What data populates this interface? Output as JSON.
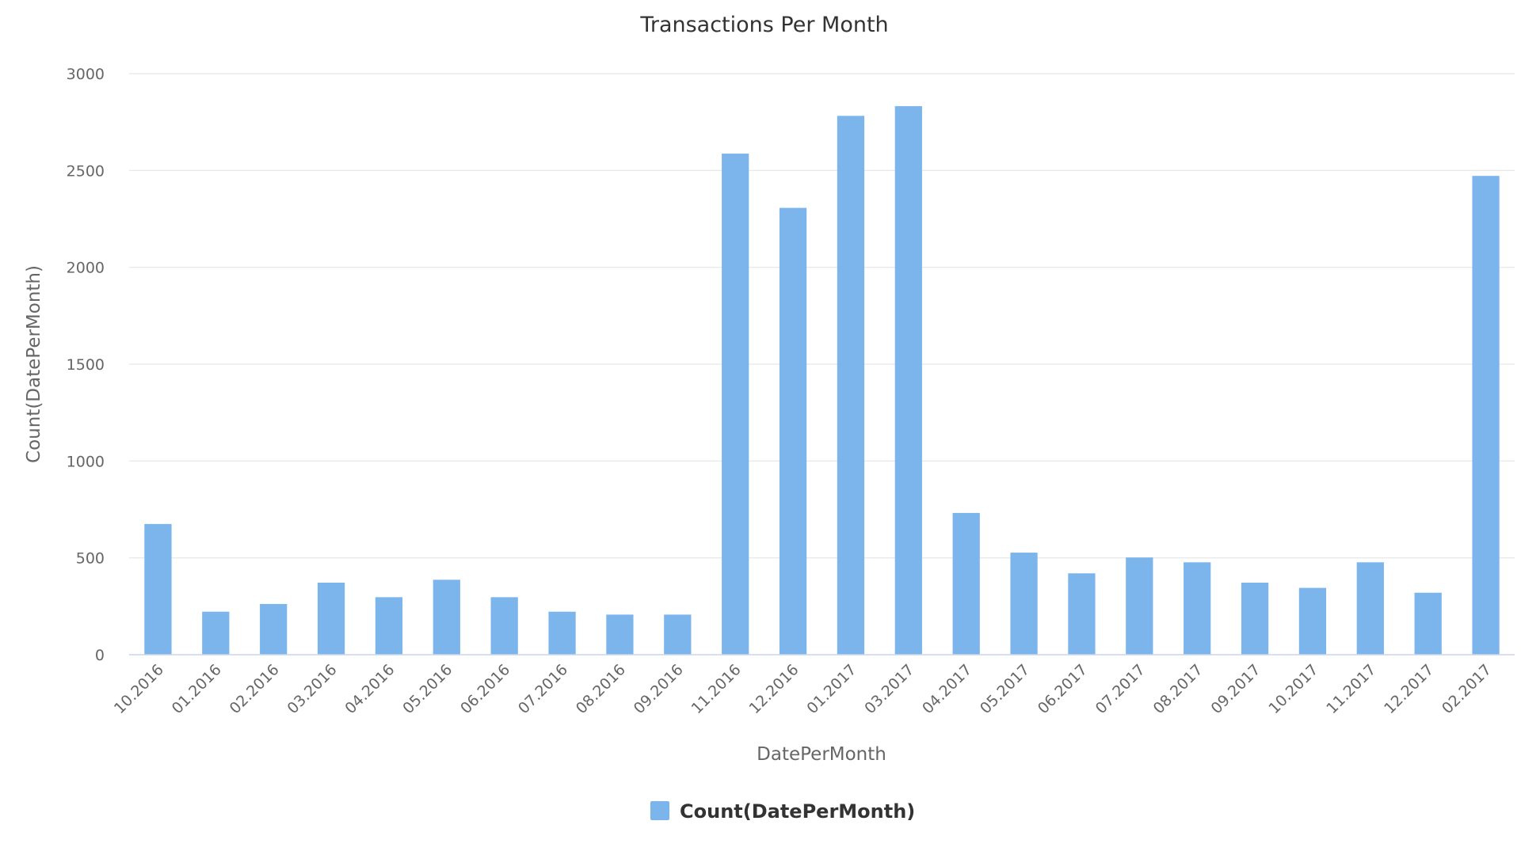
{
  "chart_data": {
    "type": "bar",
    "title": "Transactions Per Month",
    "xlabel": "DatePerMonth",
    "ylabel": "Count(DatePerMonth)",
    "categories": [
      "10.2016",
      "01.2016",
      "02.2016",
      "03.2016",
      "04.2016",
      "05.2016",
      "06.2016",
      "07.2016",
      "08.2016",
      "09.2016",
      "11.2016",
      "12.2016",
      "01.2017",
      "03.2017",
      "04.2017",
      "05.2017",
      "06.2017",
      "07.2017",
      "08.2017",
      "09.2017",
      "10.2017",
      "11.2017",
      "12.2017",
      "02.2017"
    ],
    "series": [
      {
        "name": "Count(DatePerMonth)",
        "color": "#7cb5ec",
        "values": [
          675,
          222,
          262,
          372,
          297,
          387,
          297,
          222,
          207,
          207,
          2587,
          2307,
          2782,
          2832,
          732,
          527,
          420,
          502,
          477,
          372,
          345,
          477,
          320,
          2472
        ]
      }
    ],
    "ylim": [
      0,
      3000
    ],
    "yticks": [
      0,
      500,
      1000,
      1500,
      2000,
      2500,
      3000
    ],
    "grid": true,
    "legend_position": "bottom-center"
  }
}
